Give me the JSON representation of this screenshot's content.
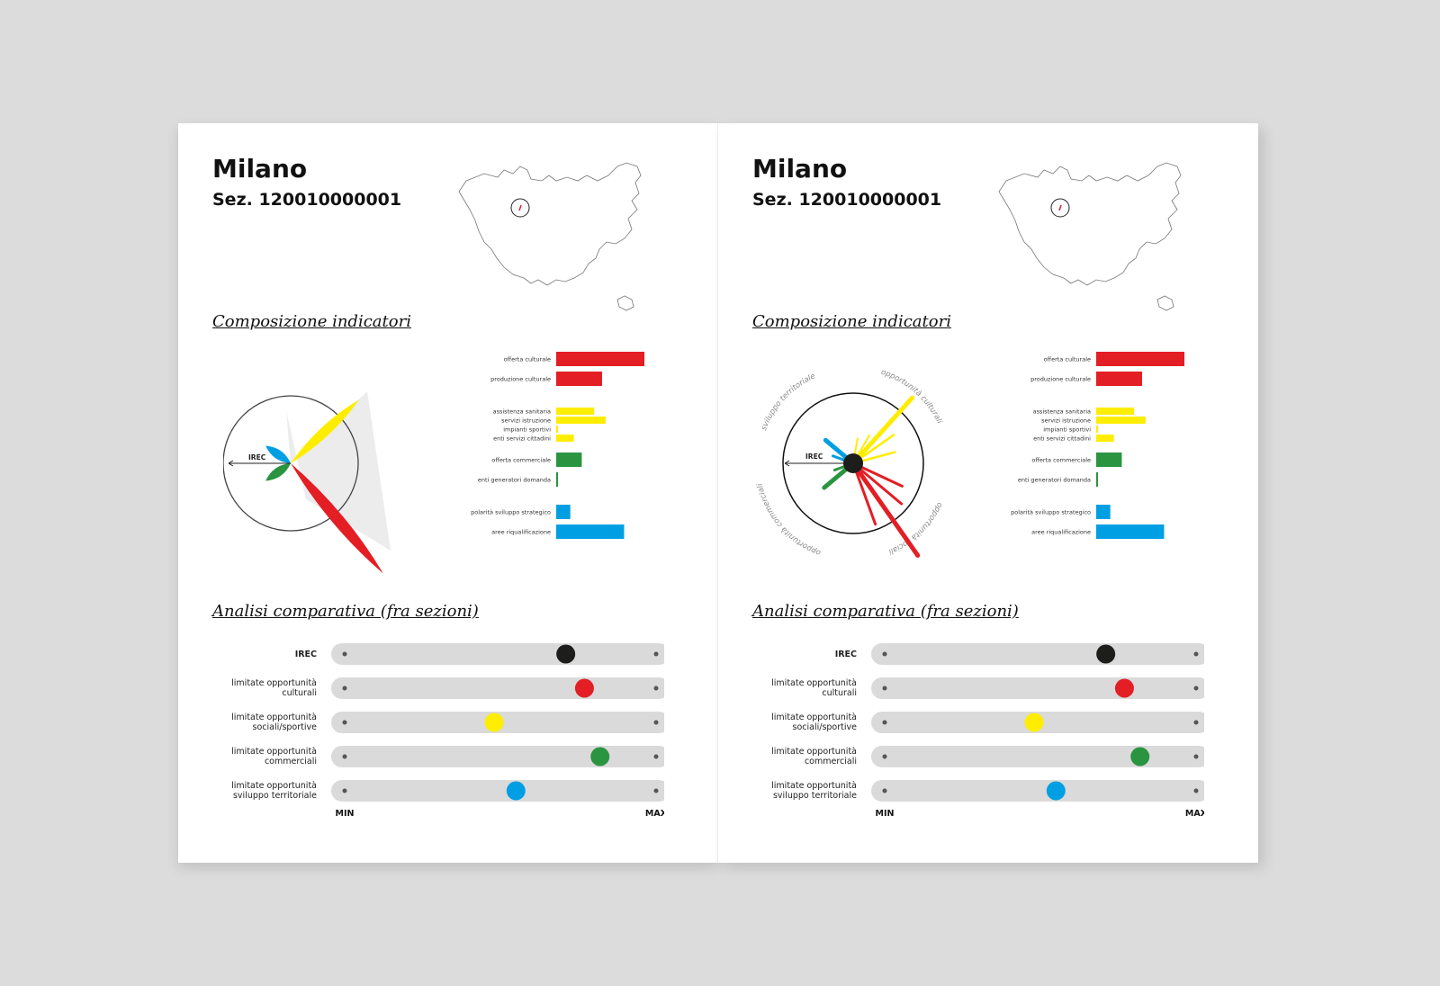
{
  "pages": [
    {
      "city": "Milano",
      "section_code": "Sez. 120010000001",
      "heading_composition": "Composizione indicatori",
      "heading_comparison": "Analisi comparativa (fra sezioni)",
      "radial_variant": "petals",
      "radial_axis_label": "IREC"
    },
    {
      "city": "Milano",
      "section_code": "Sez. 120010000001",
      "heading_composition": "Composizione indicatori",
      "heading_comparison": "Analisi comparativa (fra sezioni)",
      "radial_variant": "spikes",
      "radial_axis_label": "IREC",
      "radial_arc_labels": [
        "sviluppo territoriale",
        "opportunità culturali",
        "opportunità commerciali",
        "opportunità sociali"
      ]
    }
  ],
  "chart_data": [
    {
      "type": "bar",
      "orientation": "horizontal",
      "categories": [
        "offerta culturale",
        "produzione culturale",
        "assistenza sanitaria",
        "servizi istruzione",
        "impianti sportivi",
        "enti servizi cittadini",
        "offerta commerciale",
        "enti generatori domanda",
        "polarità sviluppo strategico",
        "aree riqualificazione"
      ],
      "values": [
        100,
        52,
        43,
        56,
        2,
        20,
        29,
        2,
        16,
        77
      ],
      "groups": [
        0,
        0,
        1,
        1,
        1,
        1,
        2,
        2,
        3,
        3
      ],
      "colors": [
        "#e31e24",
        "#e31e24",
        "#ffed00",
        "#ffed00",
        "#ffed00",
        "#ffed00",
        "#2a9440",
        "#2a9440",
        "#009fe3",
        "#009fe3"
      ]
    },
    {
      "type": "scatter",
      "subtype": "range-sliders",
      "categories": [
        "IREC",
        "limitate opportunità culturali",
        "limitate opportunità sociali/sportive",
        "limitate opportunità commerciali",
        "limitate opportunità sviluppo territoriale"
      ],
      "label_lines": [
        [
          "IREC"
        ],
        [
          "limitate opportunità",
          "culturali"
        ],
        [
          "limitate opportunità",
          "sociali/sportive"
        ],
        [
          "limitate opportunità",
          "commerciali"
        ],
        [
          "limitate opportunità",
          "sviluppo territoriale"
        ]
      ],
      "values": [
        0.71,
        0.77,
        0.48,
        0.82,
        0.55
      ],
      "colors": [
        "#1d1d1b",
        "#e31e24",
        "#ffed00",
        "#2a9440",
        "#009fe3"
      ],
      "xlim": [
        0,
        1
      ],
      "min_label": "MIN",
      "max_label": "MAX"
    }
  ]
}
